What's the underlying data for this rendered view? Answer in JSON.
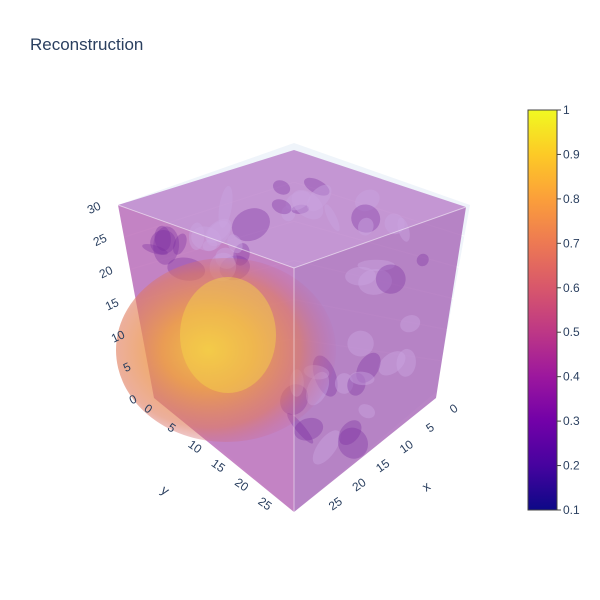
{
  "chart_data": {
    "type": "volume",
    "title": "Reconstruction",
    "axes": {
      "x": {
        "label": "x",
        "range": [
          0,
          30
        ],
        "ticks": [
          0,
          5,
          10,
          15,
          20,
          25
        ]
      },
      "y": {
        "label": "y",
        "range": [
          0,
          30
        ],
        "ticks": [
          0,
          5,
          10,
          15,
          20,
          25
        ]
      },
      "z": {
        "label": "",
        "range": [
          0,
          30
        ],
        "ticks": [
          0,
          5,
          10,
          15,
          20,
          25,
          30
        ],
        "tick_labels": [
          "0",
          "5",
          "10",
          "15",
          "20",
          "25",
          "30"
        ]
      }
    },
    "colorbar": {
      "range": [
        0.1,
        1
      ],
      "ticks": [
        1,
        0.9,
        0.8,
        0.7,
        0.6,
        0.5,
        0.4,
        0.3,
        0.2,
        0.1
      ],
      "tick_labels": [
        "1",
        "0.9",
        "0.8",
        "0.7",
        "0.6",
        "0.5",
        "0.4",
        "0.3",
        "0.2",
        "0.1"
      ],
      "colorscale": "plasma",
      "colors": [
        "#0d0887",
        "#46039f",
        "#7201a8",
        "#9c179e",
        "#bd3786",
        "#d8576b",
        "#ed7953",
        "#fb9f3a",
        "#fdca26",
        "#f0f921"
      ]
    },
    "volume_description": {
      "background_value": 0.45,
      "high_region_center": {
        "x": 8,
        "y": 18,
        "z": 14
      },
      "high_region_value": 0.85
    },
    "grid": true,
    "legend": "colorbar-right"
  }
}
